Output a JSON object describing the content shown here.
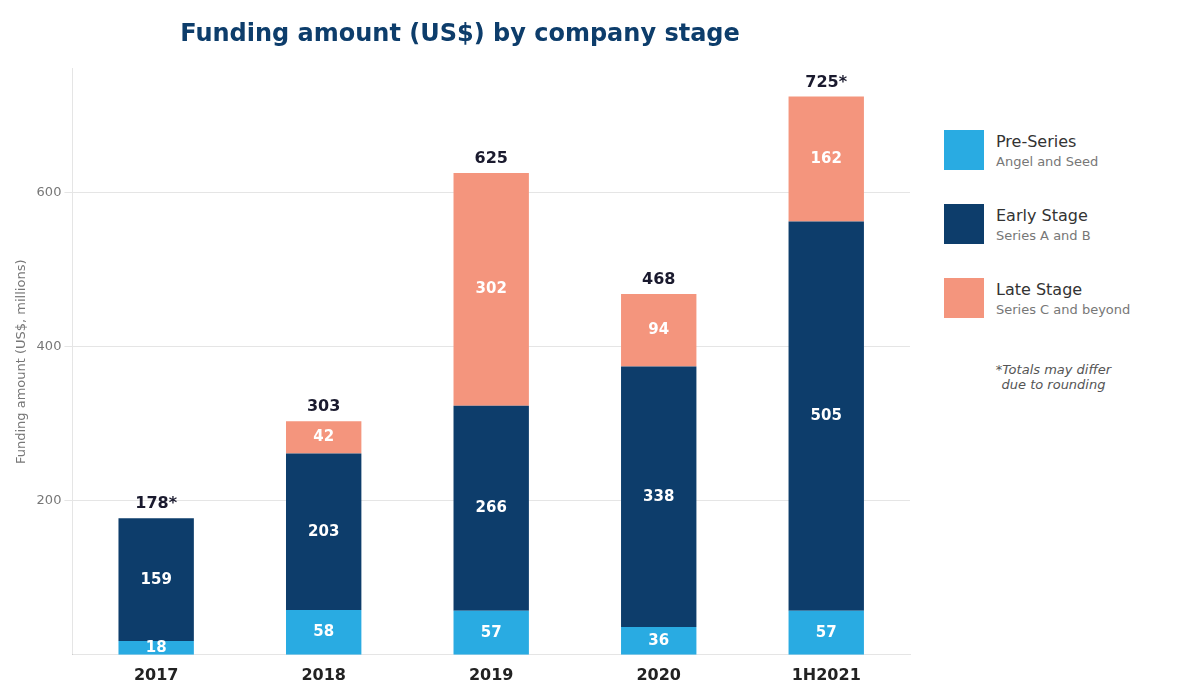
{
  "chart_data": {
    "type": "bar",
    "stacked": true,
    "title": "Funding amount (US$) by company stage",
    "ylabel": "Funding amount (US$, millions)",
    "categories": [
      "2017",
      "2018",
      "2019",
      "2020",
      "1H2021"
    ],
    "series": [
      {
        "name": "Pre-Series",
        "description": "Angel and Seed",
        "color": "#29ABE2",
        "values": [
          18,
          58,
          57,
          36,
          57
        ]
      },
      {
        "name": "Early Stage",
        "description": "Series A and B",
        "color": "#0D3D6B",
        "values": [
          159,
          203,
          266,
          338,
          505
        ]
      },
      {
        "name": "Late Stage",
        "description": "Series C and beyond",
        "color": "#F4957D",
        "values": [
          0,
          42,
          302,
          94,
          162
        ]
      }
    ],
    "annotations": [
      "178*",
      "303",
      "625",
      "468",
      "725*"
    ],
    "footnote": "*Totals may differ\ndue to rounding",
    "ylim": [
      0,
      760
    ],
    "yticks": [
      200,
      400,
      600
    ],
    "grid": true,
    "legend": "right",
    "data_labels": true
  }
}
